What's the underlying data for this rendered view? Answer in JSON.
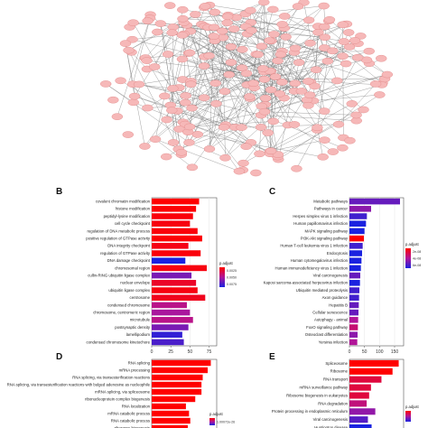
{
  "network": {
    "node_fill": "#f6b8b8",
    "node_stroke": "#e08585",
    "edge_color": "#7a7a7a"
  },
  "panels": {
    "B": "B",
    "C": "C",
    "D": "D",
    "E": "E"
  },
  "colors": {
    "scale_high": "#ff0000",
    "scale_mid": "#b0159a",
    "scale_low": "#1a22e0"
  },
  "chart_data": [
    {
      "panel": "B",
      "type": "bar",
      "orientation": "horizontal",
      "categories": [
        "covalent chromatin modification",
        "histone modification",
        "peptidyl-lysine modification",
        "cell cycle checkpoint",
        "regulation of DNA metabolic process",
        "positive regulation of GTPase activity",
        "DNA integrity checkpoint",
        "regulation of GTPase activity",
        "DNA damage checkpoint",
        "chromosomal region",
        "cullin-RING ubiquitin ligase complex",
        "nuclear envelope",
        "ubiquitin ligase complex",
        "centrosome",
        "condensed chromosome",
        "chromosome, centromeric region",
        "microtubule",
        "postsynaptic density",
        "lamellipodium",
        "condensed chromosome kinetochore"
      ],
      "values": [
        62,
        58,
        54,
        50,
        60,
        66,
        48,
        64,
        44,
        72,
        52,
        58,
        60,
        70,
        46,
        50,
        54,
        48,
        40,
        42
      ],
      "p_adjust": [
        0.0002,
        0.0003,
        0.0004,
        0.0005,
        0.0004,
        0.0003,
        0.0006,
        0.0004,
        0.0065,
        0.0005,
        0.0045,
        0.001,
        0.0005,
        0.0008,
        0.003,
        0.0035,
        0.003,
        0.0045,
        0.006,
        0.0055
      ],
      "xticks": [
        "0",
        "25",
        "50",
        "75"
      ],
      "xlim": [
        0,
        85
      ],
      "legend": {
        "title": "p.adjust",
        "labels": [
          "0.0025",
          "0.0050",
          "0.0075"
        ]
      }
    },
    {
      "panel": "C",
      "type": "bar",
      "orientation": "horizontal",
      "categories": [
        "Metabolic pathways",
        "Pathways in cancer",
        "Herpes simplex virus 1 infection",
        "Human papillomavirus infection",
        "MAPK signaling pathway",
        "PI3K-Akt signaling pathway",
        "Human T-cell leukemia virus 1 infection",
        "Endocytosis",
        "Human cytomegalovirus infection",
        "Human immunodeficiency virus 1 infection",
        "Viral carcinogenesis",
        "Kaposi sarcoma-associated herpesvirus infection",
        "Ubiquitin mediated proteolysis",
        "Axon guidance",
        "Hepatitis B",
        "Cellular senescence",
        "Autophagy - animal",
        "FoxO signaling pathway",
        "Osteoclast differentiation",
        "Yersinia infection"
      ],
      "values": [
        168,
        72,
        58,
        55,
        50,
        48,
        44,
        42,
        40,
        38,
        36,
        35,
        33,
        32,
        31,
        30,
        29,
        28,
        27,
        26
      ],
      "p_adjust": [
        6e-08,
        5e-08,
        7e-08,
        8e-08,
        8e-08,
        1e-09,
        7e-08,
        8e-08,
        8e-08,
        8e-08,
        6e-08,
        8e-08,
        7e-08,
        7e-08,
        6e-08,
        6e-08,
        4e-08,
        3e-08,
        5e-08,
        4e-08
      ],
      "xticks": [
        "0",
        "50",
        "100",
        "150"
      ],
      "xlim": [
        0,
        180
      ],
      "legend": {
        "title": "p.adjust",
        "labels": [
          "2e-08",
          "4e-08",
          "6e-08"
        ]
      }
    },
    {
      "panel": "D",
      "type": "bar",
      "orientation": "horizontal",
      "categories": [
        "RNA splicing",
        "mRNA processing",
        "RNA splicing, via transesterification reactions",
        "RNA splicing, via transesterification reactions with bulged adenosine as nucleophile",
        "mRNA splicing, via spliceosome",
        "ribonucleoprotein complex biogenesis",
        "RNA localization",
        "mRNA catabolic process",
        "RNA catabolic process",
        "ribosome biogenesis"
      ],
      "values": [
        95,
        90,
        82,
        80,
        80,
        70,
        55,
        60,
        62,
        58
      ],
      "p_adjust": [
        1e-26,
        1e-26,
        1e-26,
        1e-26,
        1e-26,
        1e-26,
        1e-26,
        1e-26,
        1e-26,
        1e-26
      ],
      "legend": {
        "title": "p.adjust",
        "labels": [
          "1.00072e-26"
        ]
      }
    },
    {
      "panel": "E",
      "type": "bar",
      "orientation": "horizontal",
      "categories": [
        "Spliceosome",
        "Ribosome",
        "RNA transport",
        "mRNA surveillance pathway",
        "Ribosome biogenesis in eukaryotes",
        "RNA degradation",
        "Protein processing in endoplasmic reticulum",
        "Viral carcinogenesis",
        "Huntington disease"
      ],
      "values": [
        80,
        70,
        52,
        35,
        32,
        28,
        42,
        30,
        36
      ],
      "p_adjust": [
        2e-20,
        2e-20,
        3e-20,
        3e-20,
        3e-20,
        4e-20,
        5e-20,
        6e-20,
        7e-20
      ],
      "legend": {
        "title": "p.adjust"
      }
    }
  ]
}
